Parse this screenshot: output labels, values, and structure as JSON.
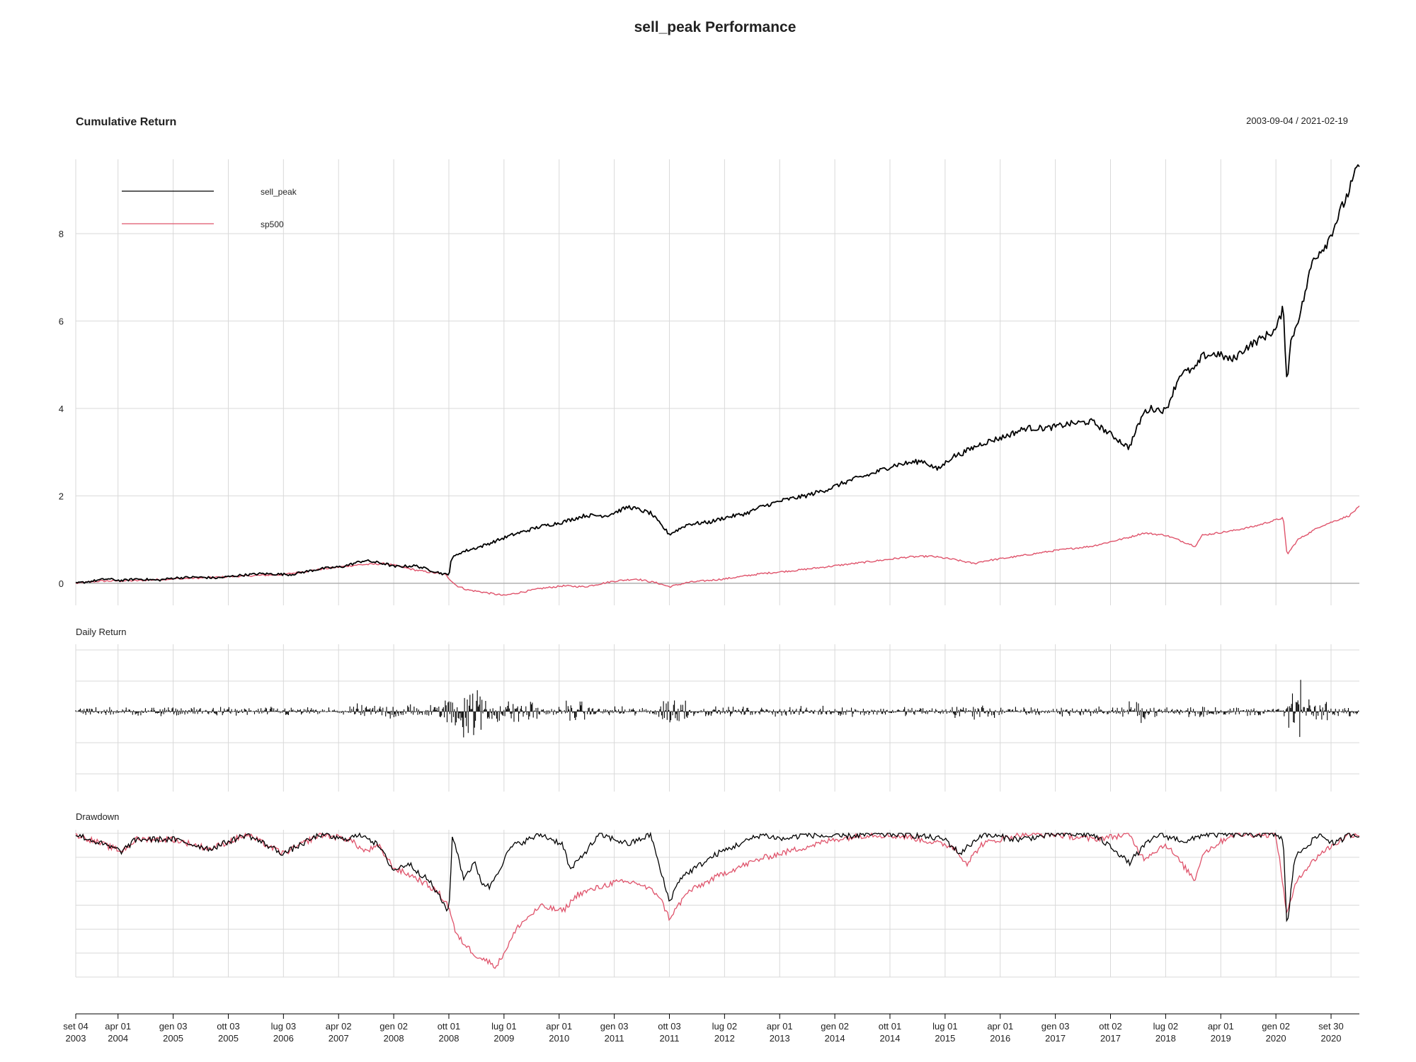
{
  "title": "sell_peak Performance",
  "date_range": "2003-09-04 / 2021-02-19",
  "colors": {
    "sell_peak": "#000000",
    "sp500": "#DF536B",
    "grid": "#D9D9D9",
    "baseline": "#AAAAAA"
  },
  "chart_data": [
    {
      "panel": "cumulative",
      "type": "line",
      "title": "Cumulative Return",
      "ylim": [
        -0.1,
        9.7
      ],
      "yticks": [
        0,
        2,
        4,
        6,
        8
      ],
      "grid": true,
      "legend": {
        "placement": "top-left",
        "entries": [
          "sell_peak",
          "sp500"
        ]
      },
      "series": [
        {
          "name": "sell_peak",
          "x": [
            2003.68,
            2003.9,
            2004.1,
            2004.3,
            2004.5,
            2004.8,
            2005.0,
            2005.3,
            2005.6,
            2005.9,
            2006.2,
            2006.6,
            2007.0,
            2007.3,
            2007.6,
            2007.9,
            2008.0,
            2008.3,
            2008.6,
            2008.75,
            2008.78,
            2008.9,
            2009.2,
            2009.6,
            2010.0,
            2010.3,
            2010.6,
            2010.9,
            2011.2,
            2011.5,
            2011.6,
            2011.75,
            2012.0,
            2012.3,
            2012.5,
            2012.8,
            2013.0,
            2013.3,
            2013.6,
            2013.9,
            2014.2,
            2014.5,
            2014.8,
            2015.0,
            2015.2,
            2015.4,
            2015.6,
            2015.7,
            2016.0,
            2016.3,
            2016.6,
            2016.9,
            2017.2,
            2017.5,
            2017.8,
            2018.0,
            2018.2,
            2018.3,
            2018.5,
            2018.7,
            2018.9,
            2019.0,
            2019.2,
            2019.4,
            2019.6,
            2019.8,
            2020.0,
            2020.1,
            2020.15,
            2020.2,
            2020.35,
            2020.5,
            2020.7,
            2020.9,
            2021.0,
            2021.13
          ],
          "values": [
            0.0,
            0.05,
            0.1,
            0.06,
            0.1,
            0.07,
            0.12,
            0.14,
            0.12,
            0.18,
            0.22,
            0.2,
            0.33,
            0.38,
            0.52,
            0.44,
            0.38,
            0.4,
            0.25,
            0.18,
            0.55,
            0.7,
            0.85,
            1.1,
            1.3,
            1.4,
            1.55,
            1.55,
            1.75,
            1.6,
            1.4,
            1.12,
            1.35,
            1.4,
            1.5,
            1.6,
            1.75,
            1.9,
            2.0,
            2.15,
            2.35,
            2.5,
            2.7,
            2.75,
            2.8,
            2.6,
            2.9,
            2.95,
            3.2,
            3.35,
            3.55,
            3.55,
            3.65,
            3.7,
            3.35,
            3.1,
            3.9,
            4.0,
            3.95,
            4.8,
            4.9,
            5.2,
            5.25,
            5.1,
            5.4,
            5.6,
            5.8,
            6.3,
            4.6,
            5.5,
            6.3,
            7.4,
            7.8,
            8.6,
            9.0,
            9.6
          ]
        },
        {
          "name": "sp500",
          "x": [
            2003.68,
            2004.0,
            2004.5,
            2005.0,
            2005.5,
            2006.0,
            2006.5,
            2007.0,
            2007.5,
            2007.9,
            2008.3,
            2008.7,
            2008.85,
            2009.0,
            2009.2,
            2009.5,
            2010.0,
            2010.3,
            2010.6,
            2011.0,
            2011.3,
            2011.6,
            2011.75,
            2012.0,
            2012.5,
            2013.0,
            2013.5,
            2014.0,
            2014.5,
            2015.0,
            2015.3,
            2015.6,
            2015.9,
            2016.0,
            2016.5,
            2017.0,
            2017.5,
            2018.0,
            2018.2,
            2018.5,
            2018.9,
            2019.0,
            2019.4,
            2019.7,
            2020.0,
            2020.1,
            2020.15,
            2020.3,
            2020.6,
            2021.0,
            2021.13
          ],
          "values": [
            0.0,
            0.05,
            0.06,
            0.1,
            0.13,
            0.17,
            0.2,
            0.32,
            0.42,
            0.45,
            0.3,
            0.2,
            -0.05,
            -0.15,
            -0.2,
            -0.28,
            -0.12,
            -0.06,
            -0.08,
            0.05,
            0.1,
            0.0,
            -0.08,
            0.02,
            0.1,
            0.22,
            0.3,
            0.4,
            0.5,
            0.6,
            0.62,
            0.55,
            0.45,
            0.5,
            0.62,
            0.75,
            0.85,
            1.05,
            1.15,
            1.1,
            0.85,
            1.1,
            1.2,
            1.3,
            1.45,
            1.5,
            0.65,
            1.0,
            1.3,
            1.55,
            1.75
          ]
        }
      ]
    },
    {
      "panel": "daily",
      "type": "bar",
      "title": "Daily Return",
      "grid": true
    },
    {
      "panel": "drawdown",
      "type": "area",
      "title": "Drawdown",
      "grid": true,
      "series": [
        {
          "name": "sell_peak",
          "x": [
            2003.68,
            2004.3,
            2004.5,
            2005.0,
            2005.5,
            2006.0,
            2006.5,
            2007.0,
            2007.3,
            2007.6,
            2007.8,
            2008.0,
            2008.2,
            2008.5,
            2008.7,
            2008.75,
            2008.8,
            2008.95,
            2009.1,
            2009.2,
            2009.3,
            2009.6,
            2010.0,
            2010.3,
            2010.4,
            2010.8,
            2011.2,
            2011.5,
            2011.6,
            2011.75,
            2011.9,
            2012.1,
            2012.4,
            2012.7,
            2013.0,
            2013.3,
            2013.6,
            2014.0,
            2014.5,
            2015.0,
            2015.5,
            2015.7,
            2016.0,
            2016.5,
            2017.0,
            2017.5,
            2017.8,
            2018.0,
            2018.2,
            2018.4,
            2018.8,
            2019.0,
            2019.5,
            2020.0,
            2020.1,
            2020.15,
            2020.25,
            2020.4,
            2020.6,
            2020.8,
            2021.0,
            2021.13
          ],
          "values": [
            0.0,
            -0.07,
            -0.02,
            -0.02,
            -0.06,
            0.0,
            -0.08,
            0.0,
            -0.02,
            0.0,
            -0.05,
            -0.15,
            -0.12,
            -0.2,
            -0.3,
            -0.32,
            0.0,
            -0.18,
            -0.12,
            -0.2,
            -0.22,
            -0.05,
            0.0,
            -0.04,
            -0.15,
            0.0,
            -0.04,
            0.0,
            -0.12,
            -0.28,
            -0.18,
            -0.14,
            -0.08,
            -0.04,
            0.0,
            -0.02,
            0.0,
            -0.01,
            0.0,
            0.0,
            -0.02,
            -0.08,
            0.0,
            -0.02,
            0.0,
            0.0,
            -0.06,
            -0.12,
            -0.05,
            0.0,
            -0.03,
            0.0,
            0.0,
            0.0,
            -0.02,
            -0.4,
            -0.1,
            -0.05,
            0.0,
            -0.04,
            0.0,
            0.0
          ]
        },
        {
          "name": "sp500",
          "x": [
            2003.68,
            2004.3,
            2004.5,
            2005.0,
            2005.5,
            2006.0,
            2006.5,
            2007.0,
            2007.4,
            2007.6,
            2007.8,
            2008.0,
            2008.3,
            2008.6,
            2008.75,
            2008.85,
            2009.1,
            2009.4,
            2009.7,
            2010.0,
            2010.3,
            2010.5,
            2011.0,
            2011.3,
            2011.6,
            2011.75,
            2012.0,
            2012.5,
            2013.0,
            2013.5,
            2014.0,
            2014.5,
            2015.0,
            2015.6,
            2015.8,
            2016.0,
            2016.5,
            2017.0,
            2017.5,
            2018.0,
            2018.2,
            2018.5,
            2018.9,
            2019.0,
            2019.4,
            2019.8,
            2020.0,
            2020.15,
            2020.3,
            2020.6,
            2021.0,
            2021.13
          ],
          "values": [
            0.0,
            -0.07,
            -0.02,
            -0.02,
            -0.06,
            0.0,
            -0.08,
            0.0,
            -0.02,
            -0.07,
            -0.05,
            -0.14,
            -0.18,
            -0.24,
            -0.3,
            -0.42,
            -0.5,
            -0.55,
            -0.38,
            -0.3,
            -0.32,
            -0.25,
            -0.2,
            -0.2,
            -0.25,
            -0.35,
            -0.24,
            -0.16,
            -0.1,
            -0.06,
            -0.02,
            0.0,
            -0.01,
            -0.05,
            -0.12,
            -0.04,
            0.0,
            0.0,
            -0.02,
            0.0,
            -0.1,
            -0.04,
            -0.19,
            -0.08,
            0.0,
            0.0,
            0.0,
            -0.33,
            -0.18,
            -0.08,
            0.0,
            0.0
          ]
        }
      ]
    }
  ],
  "x_axis": {
    "start": 2003.675,
    "end": 2021.135,
    "ticks": [
      {
        "x": 2003.675,
        "line1": "set 04",
        "line2": "2003"
      },
      {
        "x": 2004.25,
        "line1": "apr 01",
        "line2": "2004"
      },
      {
        "x": 2005.0,
        "line1": "gen 03",
        "line2": "2005"
      },
      {
        "x": 2005.75,
        "line1": "ott 03",
        "line2": "2005"
      },
      {
        "x": 2006.5,
        "line1": "lug 03",
        "line2": "2006"
      },
      {
        "x": 2007.25,
        "line1": "apr 02",
        "line2": "2007"
      },
      {
        "x": 2008.0,
        "line1": "gen 02",
        "line2": "2008"
      },
      {
        "x": 2008.75,
        "line1": "ott 01",
        "line2": "2008"
      },
      {
        "x": 2009.5,
        "line1": "lug 01",
        "line2": "2009"
      },
      {
        "x": 2010.25,
        "line1": "apr 01",
        "line2": "2010"
      },
      {
        "x": 2011.0,
        "line1": "gen 03",
        "line2": "2011"
      },
      {
        "x": 2011.75,
        "line1": "ott 03",
        "line2": "2011"
      },
      {
        "x": 2012.5,
        "line1": "lug 02",
        "line2": "2012"
      },
      {
        "x": 2013.25,
        "line1": "apr 01",
        "line2": "2013"
      },
      {
        "x": 2014.0,
        "line1": "gen 02",
        "line2": "2014"
      },
      {
        "x": 2014.75,
        "line1": "ott 01",
        "line2": "2014"
      },
      {
        "x": 2015.5,
        "line1": "lug 01",
        "line2": "2015"
      },
      {
        "x": 2016.25,
        "line1": "apr 01",
        "line2": "2016"
      },
      {
        "x": 2017.0,
        "line1": "gen 03",
        "line2": "2017"
      },
      {
        "x": 2017.75,
        "line1": "ott 02",
        "line2": "2017"
      },
      {
        "x": 2018.5,
        "line1": "lug 02",
        "line2": "2018"
      },
      {
        "x": 2019.25,
        "line1": "apr 01",
        "line2": "2019"
      },
      {
        "x": 2020.0,
        "line1": "gen 02",
        "line2": "2020"
      },
      {
        "x": 2020.75,
        "line1": "set 30",
        "line2": "2020"
      }
    ]
  }
}
